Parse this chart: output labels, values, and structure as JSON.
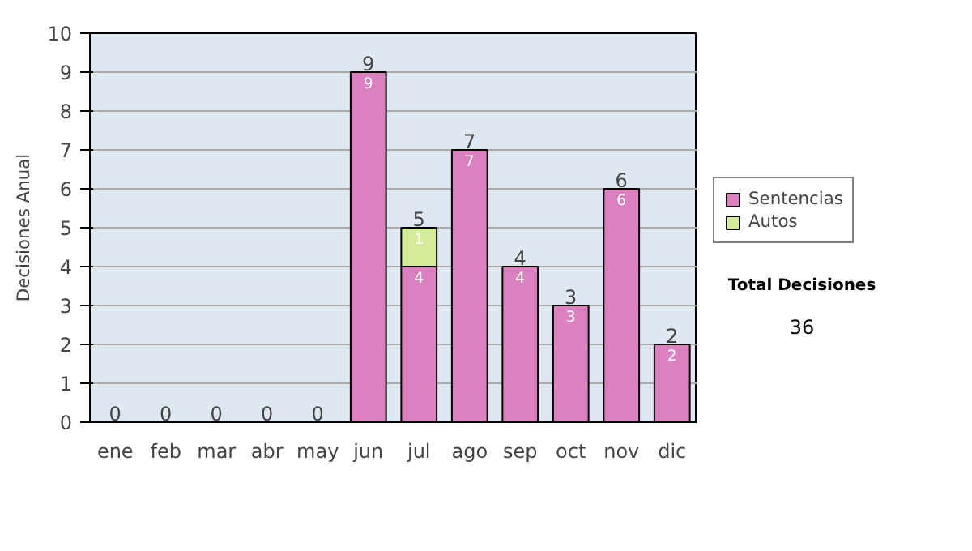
{
  "chart_data": {
    "type": "bar",
    "stacked": true,
    "ylabel": "Decisiones Anual",
    "categories": [
      "ene",
      "feb",
      "mar",
      "abr",
      "may",
      "jun",
      "jul",
      "ago",
      "sep",
      "oct",
      "nov",
      "dic"
    ],
    "series": [
      {
        "name": "Sentencias",
        "color": "#dd80bf",
        "values": [
          0,
          0,
          0,
          0,
          0,
          9,
          4,
          7,
          4,
          3,
          6,
          2
        ],
        "value_labels": [
          null,
          null,
          null,
          null,
          null,
          "9",
          "4",
          "7",
          "4",
          "3",
          "6",
          "2"
        ]
      },
      {
        "name": "Autos",
        "color": "#d4eb98",
        "values": [
          0,
          0,
          0,
          0,
          0,
          0,
          1,
          0,
          0,
          0,
          0,
          0
        ],
        "value_labels": [
          null,
          null,
          null,
          null,
          null,
          null,
          "1",
          null,
          null,
          null,
          null,
          null
        ]
      }
    ],
    "totals": [
      "0",
      "0",
      "0",
      "0",
      "0",
      "9",
      "5",
      "7",
      "4",
      "3",
      "6",
      "2"
    ],
    "ylim": [
      0,
      10
    ],
    "yticks": [
      0,
      1,
      2,
      3,
      4,
      5,
      6,
      7,
      8,
      9,
      10
    ],
    "grid": "y",
    "legend": "right",
    "annotations": [
      "Total Decisiones",
      "36"
    ]
  }
}
